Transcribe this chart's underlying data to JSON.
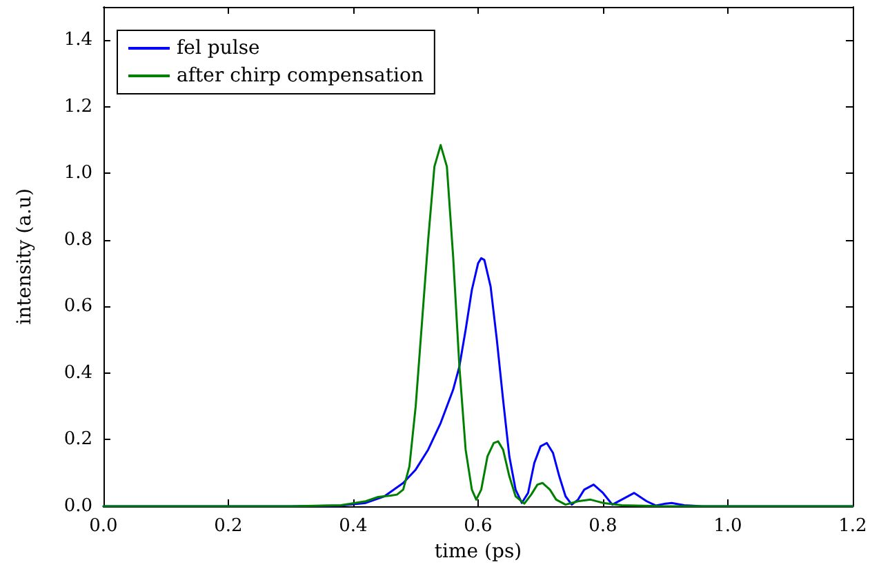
{
  "chart_data": {
    "type": "line",
    "xlabel": "time (ps)",
    "ylabel": "intensity (a.u)",
    "xlim": [
      0,
      1.2
    ],
    "ylim": [
      0,
      1.5
    ],
    "xticks": [
      {
        "value": 0,
        "label": "0.0"
      },
      0.2,
      0.4,
      0.6,
      0.8,
      {
        "value": 1,
        "label": "1.0"
      },
      1.2
    ],
    "yticks": [
      {
        "value": 0,
        "label": "0.0"
      },
      0.2,
      0.4,
      0.6,
      0.8,
      {
        "value": 1,
        "label": "1.0"
      },
      1.2,
      1.4
    ],
    "grid": false,
    "legend": "top left",
    "marker": "none",
    "line_style": "solid",
    "series": [
      {
        "name": "fel pulse",
        "color": "#0000ff",
        "x": [
          0,
          0.3,
          0.38,
          0.42,
          0.45,
          0.48,
          0.5,
          0.52,
          0.54,
          0.56,
          0.57,
          0.58,
          0.59,
          0.6,
          0.605,
          0.61,
          0.62,
          0.63,
          0.64,
          0.65,
          0.66,
          0.67,
          0.68,
          0.69,
          0.7,
          0.71,
          0.72,
          0.73,
          0.74,
          0.75,
          0.76,
          0.77,
          0.785,
          0.8,
          0.815,
          0.83,
          0.85,
          0.87,
          0.885,
          0.9,
          0.91,
          0.93,
          0.96,
          1.0,
          1.2
        ],
        "values": [
          0,
          0,
          0.002,
          0.01,
          0.03,
          0.07,
          0.11,
          0.17,
          0.25,
          0.35,
          0.42,
          0.53,
          0.65,
          0.73,
          0.745,
          0.74,
          0.66,
          0.5,
          0.32,
          0.15,
          0.05,
          0.01,
          0.04,
          0.13,
          0.18,
          0.19,
          0.16,
          0.09,
          0.03,
          0.005,
          0.02,
          0.05,
          0.065,
          0.04,
          0.005,
          0.02,
          0.04,
          0.015,
          0.002,
          0.008,
          0.01,
          0.003,
          0,
          0,
          0
        ]
      },
      {
        "name": "after chirp compensation",
        "color": "#008000",
        "x": [
          0,
          0.3,
          0.38,
          0.42,
          0.44,
          0.46,
          0.47,
          0.48,
          0.49,
          0.5,
          0.51,
          0.52,
          0.53,
          0.54,
          0.55,
          0.56,
          0.57,
          0.58,
          0.59,
          0.597,
          0.605,
          0.615,
          0.625,
          0.632,
          0.64,
          0.65,
          0.66,
          0.674,
          0.685,
          0.695,
          0.703,
          0.715,
          0.725,
          0.74,
          0.76,
          0.78,
          0.8,
          0.83,
          0.9,
          1.2
        ],
        "values": [
          0,
          0,
          0.003,
          0.015,
          0.028,
          0.032,
          0.035,
          0.05,
          0.12,
          0.3,
          0.55,
          0.8,
          1.02,
          1.085,
          1.02,
          0.75,
          0.42,
          0.17,
          0.05,
          0.02,
          0.05,
          0.15,
          0.19,
          0.195,
          0.17,
          0.09,
          0.03,
          0.008,
          0.035,
          0.065,
          0.07,
          0.05,
          0.02,
          0.005,
          0.015,
          0.02,
          0.01,
          0.003,
          0,
          0
        ]
      }
    ]
  }
}
